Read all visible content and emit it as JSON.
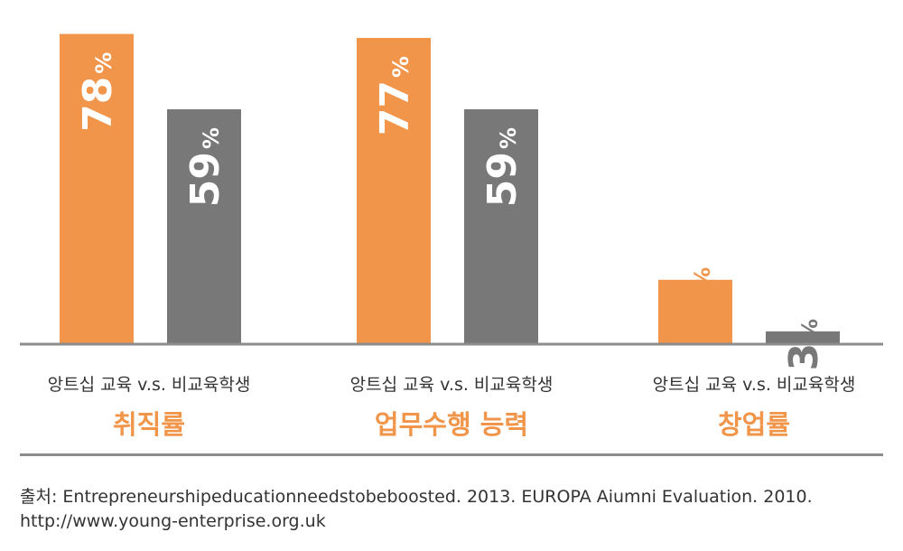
{
  "chart_data": {
    "type": "bar",
    "categories": [
      "취직률",
      "업무수행 능력",
      "창업률"
    ],
    "series": [
      {
        "values": [
          78,
          77,
          16
        ]
      },
      {
        "values": [
          59,
          59,
          3
        ]
      }
    ],
    "value_suffix": "%",
    "comparison_caption": "앙트십 교육 v.s. 비교육학생",
    "ylim": [
      0,
      80
    ],
    "grid": false,
    "colors": {
      "education": "#f0954a",
      "no_education": "#787878",
      "axis": "#8c8c8c"
    }
  },
  "captions": [
    "앙트십 교육 v.s. 비교육학생",
    "앙트십 교육 v.s. 비교육학생",
    "앙트십 교육 v.s. 비교육학생"
  ],
  "source": {
    "line1": "출처: Entrepreneurshipeducationneedstobeboosted. 2013. EUROPA Aiumni Evaluation. 2010.",
    "line2": "http://www.young-enterprise.org.uk"
  }
}
